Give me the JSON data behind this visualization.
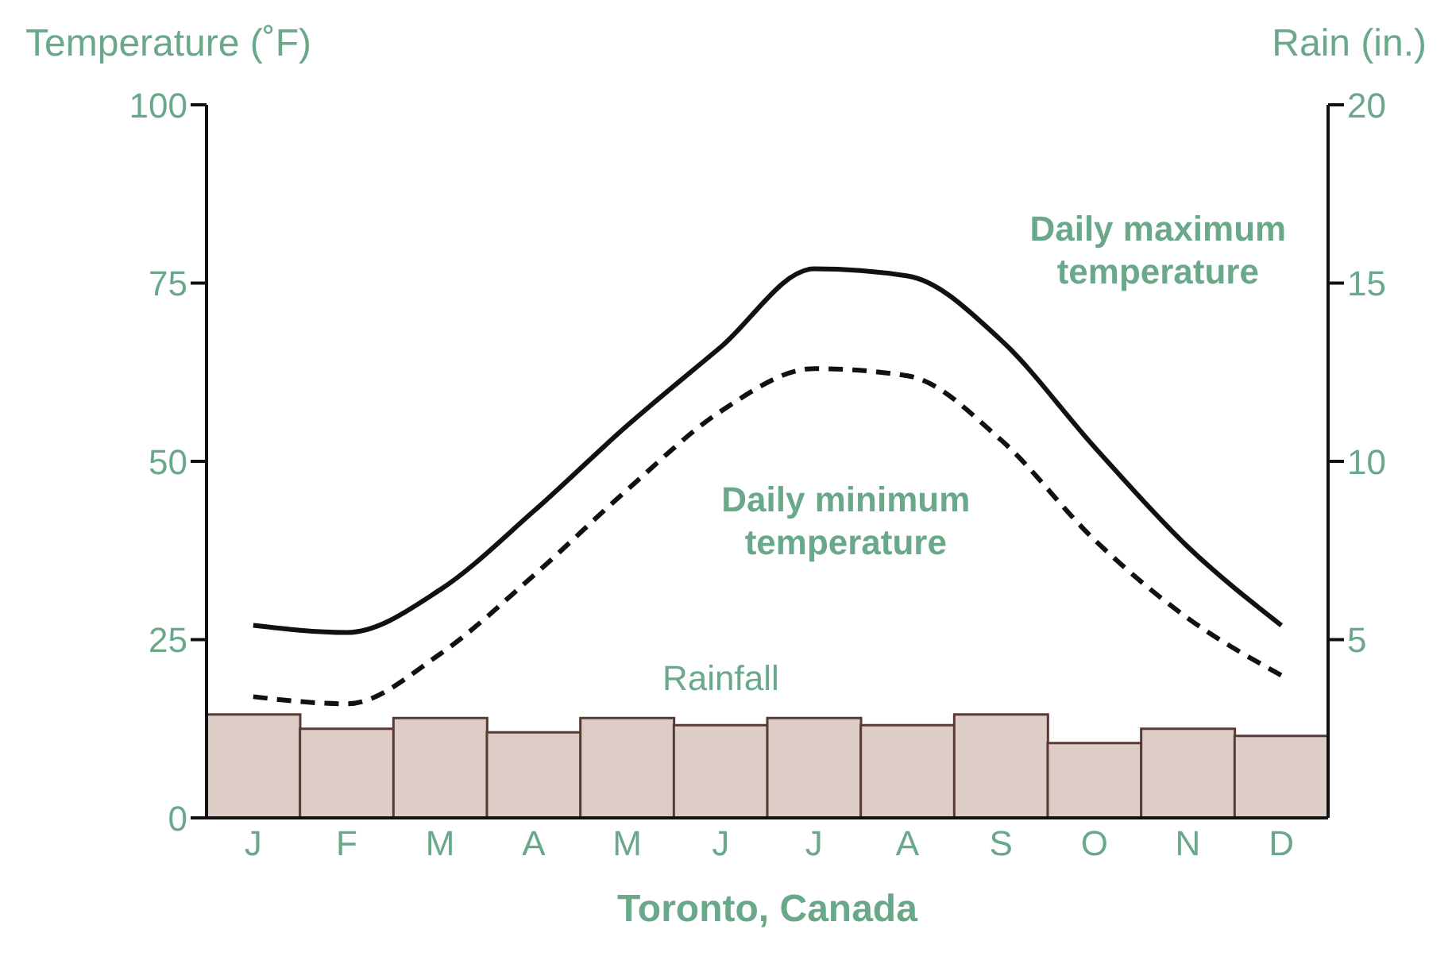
{
  "chart_data": {
    "type": "line",
    "xlabel": "Toronto, Canada",
    "ylabel": "Temperature (˚F)",
    "y2label": "Rain (in.)",
    "categories": [
      "J",
      "F",
      "M",
      "A",
      "M",
      "J",
      "J",
      "A",
      "S",
      "O",
      "N",
      "D"
    ],
    "series": [
      {
        "name": "Rainfall",
        "type": "bar",
        "axis": "y2",
        "color": "#ddcdc6",
        "values": [
          2.9,
          2.5,
          2.8,
          2.4,
          2.8,
          2.6,
          2.8,
          2.6,
          2.9,
          2.1,
          2.5,
          2.3
        ]
      },
      {
        "name": "Daily maximum temperature",
        "color": "#111111",
        "line_style": "solid",
        "values": [
          27,
          26,
          32,
          43,
          55,
          66,
          77,
          76,
          67,
          52,
          38,
          27
        ]
      },
      {
        "name": "Daily minimum temperature",
        "color": "#111111",
        "line_style": "dashed",
        "values": [
          17,
          16,
          23,
          34,
          46,
          57,
          63,
          62,
          53,
          39,
          28,
          20
        ]
      }
    ],
    "ylim": [
      0,
      100
    ],
    "yticks": [
      0,
      25,
      50,
      75,
      100
    ],
    "y2lim": [
      0,
      20
    ],
    "y2ticks": [
      5,
      10,
      15,
      20
    ],
    "marker": "none",
    "legend": false
  }
}
